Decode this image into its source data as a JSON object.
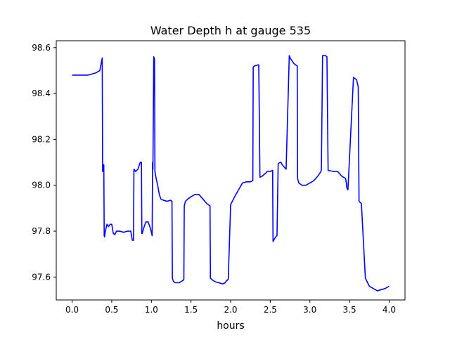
{
  "chart_data": {
    "type": "line",
    "title": "Water Depth h at gauge 535",
    "xlabel": "hours",
    "ylabel": "",
    "xlim": [
      -0.2,
      4.2
    ],
    "ylim": [
      97.5,
      98.63
    ],
    "xticks": [
      0.0,
      0.5,
      1.0,
      1.5,
      2.0,
      2.5,
      3.0,
      3.5,
      4.0
    ],
    "yticks": [
      97.6,
      97.8,
      98.0,
      98.2,
      98.4,
      98.6
    ],
    "xtick_labels": [
      "0.0",
      "0.5",
      "1.0",
      "1.5",
      "2.0",
      "2.5",
      "3.0",
      "3.5",
      "4.0"
    ],
    "ytick_labels": [
      "97.6",
      "97.8",
      "98.0",
      "98.2",
      "98.4",
      "98.6"
    ],
    "grid": false,
    "legend": "none",
    "series": [
      {
        "color": "#0000ff",
        "x": [
          0.0,
          0.1,
          0.2,
          0.3,
          0.35,
          0.38,
          0.385,
          0.39,
          0.4,
          0.405,
          0.41,
          0.42,
          0.44,
          0.46,
          0.48,
          0.5,
          0.52,
          0.54,
          0.56,
          0.58,
          0.6,
          0.65,
          0.7,
          0.74,
          0.76,
          0.775,
          0.78,
          0.8,
          0.83,
          0.86,
          0.875,
          0.88,
          0.885,
          0.9,
          0.93,
          0.96,
          0.99,
          1.01,
          1.015,
          1.02,
          1.03,
          1.04,
          1.045,
          1.05,
          1.06,
          1.08,
          1.1,
          1.12,
          1.15,
          1.2,
          1.24,
          1.26,
          1.265,
          1.28,
          1.3,
          1.35,
          1.4,
          1.41,
          1.415,
          1.43,
          1.46,
          1.5,
          1.55,
          1.6,
          1.65,
          1.7,
          1.74,
          1.745,
          1.76,
          1.8,
          1.85,
          1.9,
          1.93,
          1.95,
          1.955,
          1.97,
          2.0,
          2.05,
          2.1,
          2.15,
          2.2,
          2.25,
          2.28,
          2.285,
          2.3,
          2.35,
          2.355,
          2.37,
          2.4,
          2.45,
          2.46,
          2.5,
          2.53,
          2.535,
          2.55,
          2.58,
          2.585,
          2.6,
          2.63,
          2.635,
          2.65,
          2.7,
          2.74,
          2.745,
          2.76,
          2.8,
          2.84,
          2.845,
          2.86,
          2.9,
          2.95,
          3.0,
          3.05,
          3.1,
          3.14,
          3.145,
          3.16,
          3.2,
          3.21,
          3.215,
          3.23,
          3.3,
          3.35,
          3.4,
          3.45,
          3.46,
          3.465,
          3.48,
          3.55,
          3.59,
          3.595,
          3.61,
          3.62,
          3.65,
          3.7,
          3.75,
          3.8,
          3.85,
          3.9,
          3.95,
          4.0
        ],
        "y": [
          98.48,
          98.48,
          98.48,
          98.49,
          98.5,
          98.555,
          98.06,
          98.08,
          98.09,
          97.78,
          97.775,
          97.8,
          97.83,
          97.82,
          97.83,
          97.83,
          97.79,
          97.785,
          97.8,
          97.8,
          97.8,
          97.795,
          97.8,
          97.8,
          97.76,
          97.76,
          98.07,
          98.06,
          98.07,
          98.1,
          98.1,
          97.79,
          97.79,
          97.81,
          97.84,
          97.84,
          97.81,
          97.78,
          98.1,
          98.07,
          98.56,
          98.55,
          98.06,
          98.05,
          98.03,
          98.0,
          97.96,
          97.94,
          97.935,
          97.93,
          97.935,
          97.93,
          97.595,
          97.58,
          97.575,
          97.575,
          97.585,
          97.59,
          97.91,
          97.93,
          97.94,
          97.95,
          97.96,
          97.96,
          97.94,
          97.92,
          97.91,
          97.595,
          97.59,
          97.58,
          97.575,
          97.57,
          97.575,
          97.585,
          97.585,
          97.59,
          97.915,
          97.95,
          97.98,
          98.01,
          98.015,
          98.015,
          98.02,
          98.515,
          98.52,
          98.525,
          98.525,
          98.035,
          98.04,
          98.055,
          98.06,
          98.06,
          98.065,
          97.755,
          97.765,
          97.78,
          97.78,
          98.095,
          98.1,
          98.1,
          98.09,
          98.07,
          98.565,
          98.56,
          98.55,
          98.53,
          98.52,
          98.03,
          98.01,
          98.0,
          98.0,
          98.01,
          98.02,
          98.04,
          98.06,
          98.07,
          98.565,
          98.565,
          98.56,
          98.56,
          98.065,
          98.06,
          98.06,
          98.04,
          98.03,
          98.01,
          97.99,
          97.98,
          98.47,
          98.46,
          98.45,
          98.43,
          97.93,
          97.92,
          97.595,
          97.56,
          97.55,
          97.54,
          97.545,
          97.55,
          97.56
        ]
      }
    ]
  }
}
